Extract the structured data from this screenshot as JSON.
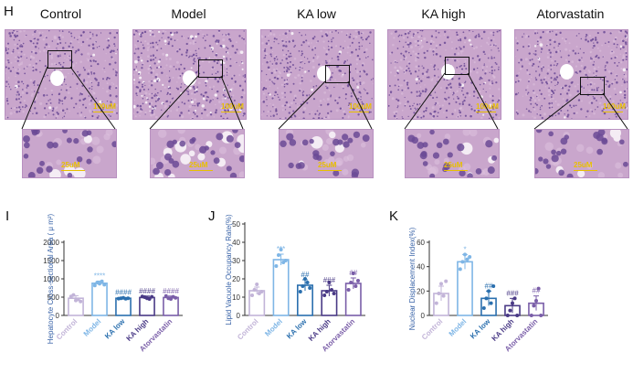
{
  "panels": {
    "H": "H",
    "I": "I",
    "J": "J",
    "K": "K"
  },
  "groups": [
    "Control",
    "Model",
    "KA low",
    "KA high",
    "Atorvastatin"
  ],
  "histology": {
    "scale_top": "100uM",
    "scale_bottom": "25uM",
    "scale_bottom_alt": [
      "25uM",
      "25uM",
      "25uM",
      "25uM",
      "25uM"
    ],
    "colors": {
      "tissue": "#c9a6cc",
      "nucleus": "#6b4a95",
      "lumen": "#ffffff",
      "scale": "#e8c000"
    }
  },
  "chart_data": [
    {
      "type": "bar",
      "panel": "I",
      "ylabel": "Hepatocyte Cross-sectional Area ( μ m²)",
      "categories": [
        "Control",
        "Model",
        "KA low",
        "KA high",
        "Atorvastatin"
      ],
      "values": [
        470,
        880,
        470,
        490,
        490
      ],
      "errors": [
        70,
        60,
        15,
        40,
        40
      ],
      "points": [
        [
          520,
          560,
          410,
          440,
          380
        ],
        [
          820,
          900,
          870,
          930,
          840
        ],
        [
          460,
          470,
          480,
          455,
          470
        ],
        [
          520,
          500,
          470,
          450,
          510
        ],
        [
          530,
          470,
          450,
          510,
          480
        ]
      ],
      "yticks": [
        0,
        500,
        1000,
        1500,
        2000
      ],
      "ylim": [
        0,
        2000
      ],
      "annotations": [
        "",
        "****",
        "####",
        "####",
        "####"
      ]
    },
    {
      "type": "bar",
      "panel": "J",
      "ylabel": "Lipid Vacuole Occupancy Rate(%)",
      "categories": [
        "Control",
        "Model",
        "KA low",
        "KA high",
        "Atorvastatin"
      ],
      "values": [
        13.5,
        30.5,
        16.5,
        13.5,
        17.5
      ],
      "errors": [
        2,
        3,
        3,
        3,
        3
      ],
      "points": [
        [
          11,
          14,
          17,
          12,
          13
        ],
        [
          27,
          33,
          36,
          29,
          30
        ],
        [
          13,
          16,
          20,
          18,
          15
        ],
        [
          11,
          13,
          18,
          14,
          12
        ],
        [
          14,
          18,
          23,
          16,
          19
        ]
      ],
      "yticks": [
        0,
        10,
        20,
        30,
        40,
        50
      ],
      "ylim": [
        0,
        50
      ],
      "annotations": [
        "",
        "***",
        "##",
        "###",
        "##"
      ]
    },
    {
      "type": "bar",
      "panel": "K",
      "ylabel": "Nuclear Displacement Index(%)",
      "categories": [
        "Control",
        "Model",
        "KA low",
        "KA high",
        "Atorvastatin"
      ],
      "values": [
        18,
        44,
        14,
        8,
        10
      ],
      "errors": [
        6,
        6,
        6,
        6,
        6
      ],
      "points": [
        [
          10,
          18,
          26,
          16,
          28
        ],
        [
          38,
          44,
          50,
          46,
          48
        ],
        [
          6,
          14,
          20,
          10,
          24
        ],
        [
          0,
          4,
          10,
          14,
          0
        ],
        [
          0,
          8,
          12,
          22,
          0
        ]
      ],
      "yticks": [
        0,
        20,
        40,
        60
      ],
      "ylim": [
        0,
        60
      ],
      "annotations": [
        "",
        "*",
        "##",
        "###",
        "##"
      ]
    }
  ],
  "colors": {
    "groups": [
      "#c2b4d8",
      "#7fb6e6",
      "#2a6fae",
      "#4a3a86",
      "#7a5ea8"
    ]
  }
}
